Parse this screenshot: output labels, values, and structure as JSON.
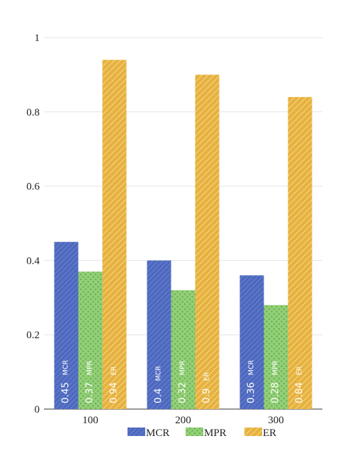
{
  "chart_data": {
    "type": "bar",
    "categories": [
      "100",
      "200",
      "300"
    ],
    "series": [
      {
        "name": "MCR",
        "values": [
          0.45,
          0.4,
          0.36
        ],
        "color": "#4d6bbf",
        "pattern": "diagonal-dark"
      },
      {
        "name": "MPR",
        "values": [
          0.37,
          0.32,
          0.28
        ],
        "color": "#8ccc72",
        "pattern": "dots"
      },
      {
        "name": "ER",
        "values": [
          0.94,
          0.9,
          0.84
        ],
        "color": "#e9b949",
        "pattern": "diagonal-light"
      }
    ],
    "ylim": [
      0,
      1
    ],
    "yticks": [
      "0",
      "0.2",
      "0.4",
      "0.6",
      "0.8",
      "1"
    ],
    "ytick_values": [
      0,
      0.2,
      0.4,
      0.6,
      0.8,
      1
    ],
    "data_labels": [
      [
        "0.45",
        "0.37",
        "0.94"
      ],
      [
        "0.4",
        "0.32",
        "0.9"
      ],
      [
        "0.36",
        "0.28",
        "0.84"
      ]
    ],
    "grid": true,
    "legend_position": "bottom"
  }
}
